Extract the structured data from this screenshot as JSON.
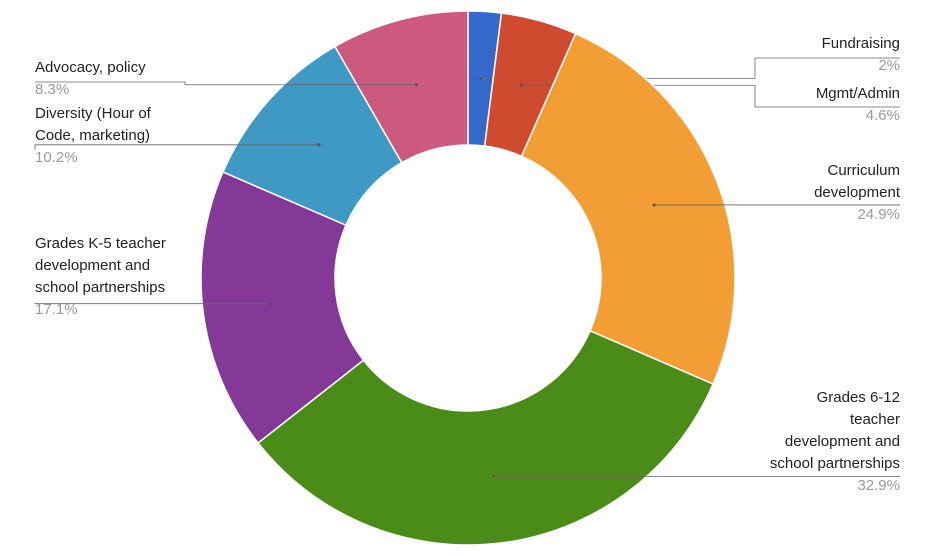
{
  "chart_data": {
    "type": "donut",
    "categories": [
      "Fundraising",
      "Mgmt/Admin",
      "Curriculum\ndevelopment",
      "Grades 6-12\nteacher\ndevelopment and\nschool partnerships",
      "Grades K-5 teacher\ndevelopment and\nschool partnerships",
      "Diversity (Hour of\nCode, marketing)",
      "Advocacy, policy"
    ],
    "values": [
      2,
      4.6,
      24.9,
      32.9,
      17.1,
      10.2,
      8.3
    ],
    "value_labels": [
      "2%",
      "4.6%",
      "24.9%",
      "32.9%",
      "17.1%",
      "10.2%",
      "8.3%"
    ],
    "colors": [
      "#3569c9",
      "#cf4a2e",
      "#f29e35",
      "#4a8c17",
      "#843897",
      "#3e99c5",
      "#cb5a7e"
    ]
  }
}
